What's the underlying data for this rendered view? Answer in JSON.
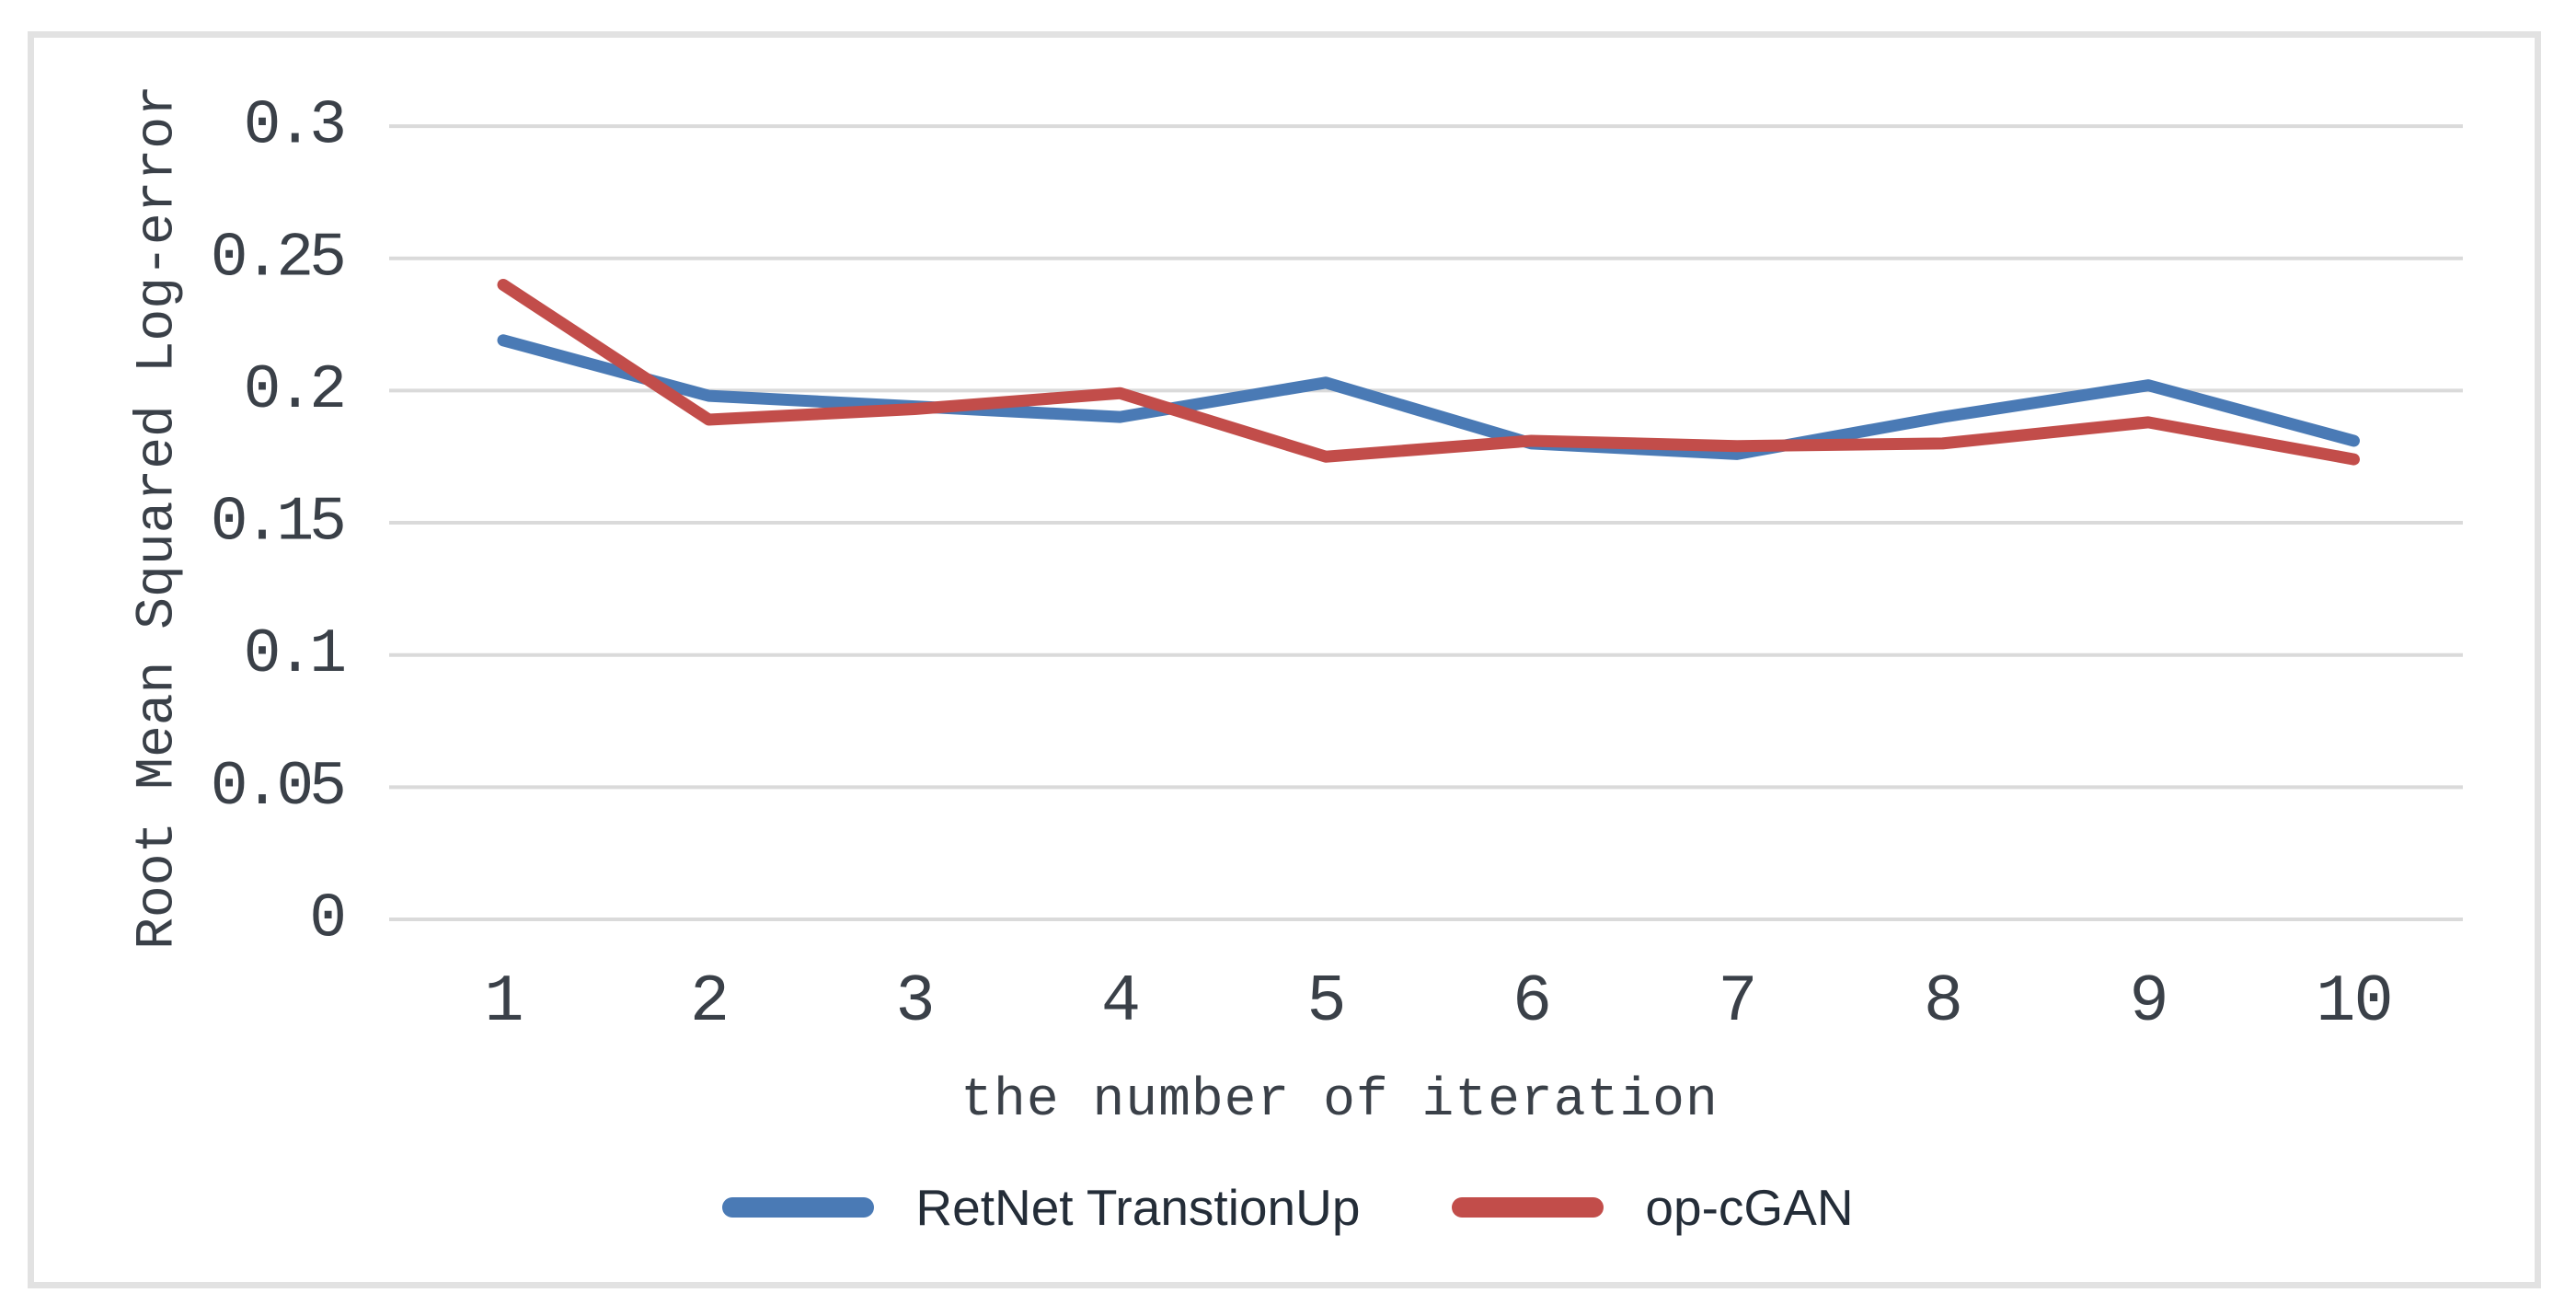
{
  "figure": {
    "background": "#ffffff",
    "border_color": "#e2e2e2"
  },
  "chart_data": {
    "type": "line",
    "title": "",
    "ylabel": "Root Mean Squared Log-error",
    "xlabel": "the number of iteration",
    "x": [
      1,
      2,
      3,
      4,
      5,
      6,
      7,
      8,
      9,
      10
    ],
    "x_tick_labels": [
      "1",
      "2",
      "3",
      "4",
      "5",
      "6",
      "7",
      "8",
      "9",
      "10"
    ],
    "y_ticks": [
      0,
      0.05,
      0.1,
      0.15,
      0.2,
      0.25,
      0.3
    ],
    "y_tick_labels": [
      "0",
      "0.05",
      "0.1",
      "0.15",
      "0.2",
      "0.25",
      "0.3"
    ],
    "ylim": [
      0,
      0.3
    ],
    "grid": "horizontal-only",
    "gridline_color": "#dadada",
    "axis_text_color": "#3a4048",
    "legend_position": "bottom",
    "series": [
      {
        "name": "RetNet TranstionUp",
        "color": "#4a7ab5",
        "values": [
          0.219,
          0.198,
          0.194,
          0.19,
          0.203,
          0.18,
          0.176,
          0.19,
          0.202,
          0.181
        ]
      },
      {
        "name": "op-cGAN",
        "color": "#c24d4a",
        "values": [
          0.24,
          0.189,
          0.193,
          0.199,
          0.175,
          0.181,
          0.179,
          0.18,
          0.188,
          0.174
        ]
      }
    ]
  }
}
